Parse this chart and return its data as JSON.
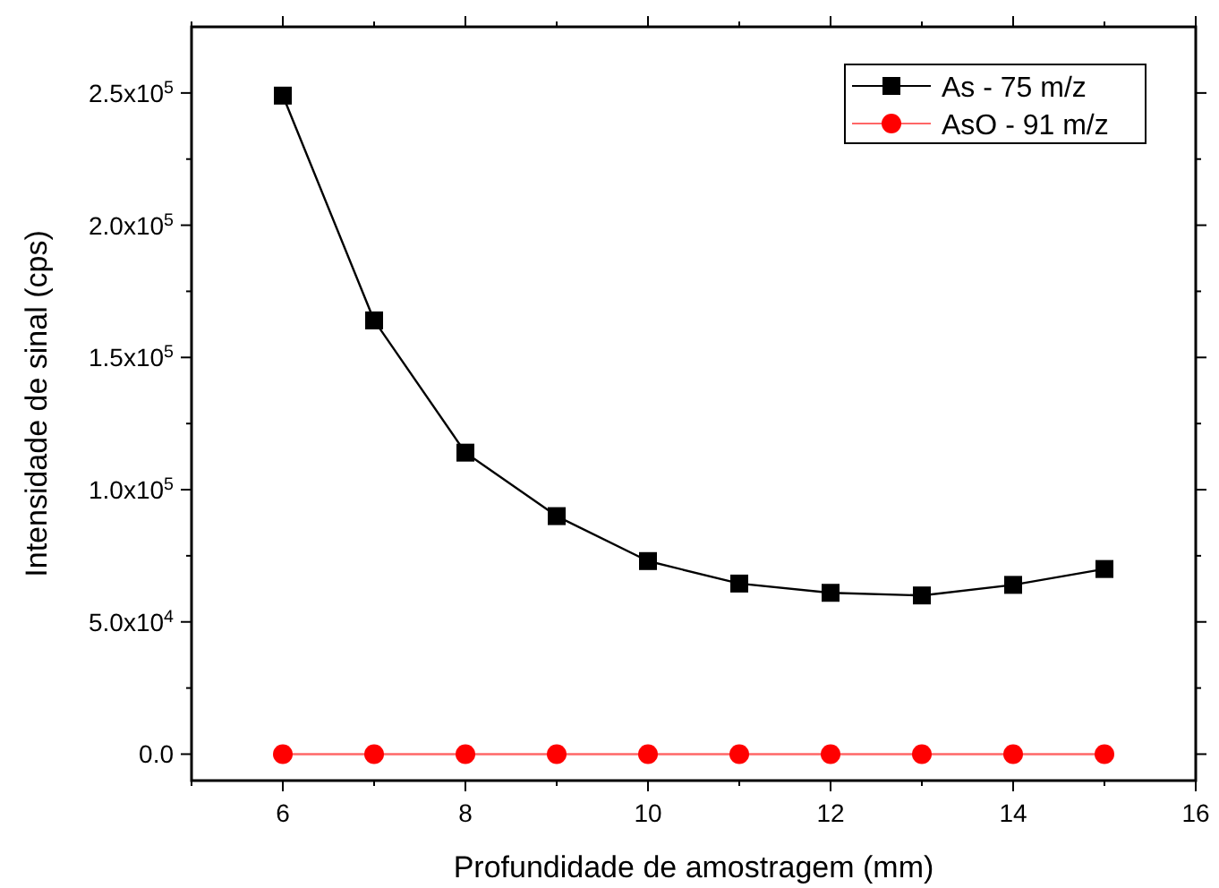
{
  "chart_data": {
    "type": "line",
    "xlabel": "Profundidade de amostragem (mm)",
    "ylabel": "Intensidade de sinal (cps)",
    "x": [
      6,
      7,
      8,
      9,
      10,
      11,
      12,
      13,
      14,
      15
    ],
    "series": [
      {
        "name": "As - 75 m/z",
        "color": "#000000",
        "marker": "square",
        "values": [
          249000,
          164000,
          114000,
          90000,
          73000,
          64500,
          61000,
          60000,
          64000,
          70000
        ]
      },
      {
        "name": "AsO - 91 m/z",
        "color": "#ff0000",
        "marker": "circle",
        "values": [
          0,
          0,
          0,
          0,
          0,
          0,
          0,
          0,
          0,
          0
        ]
      }
    ],
    "xlim": [
      5,
      16
    ],
    "xticks": [
      {
        "value": 5,
        "label": null
      },
      6,
      {
        "value": 7,
        "label": null
      },
      8,
      {
        "value": 9,
        "label": null
      },
      10,
      {
        "value": 11,
        "label": null
      },
      12,
      {
        "value": 13,
        "label": null
      },
      14,
      {
        "value": 15,
        "label": null
      },
      16
    ],
    "ylim": [
      -10000,
      275000
    ],
    "yticks": [
      {
        "value": 0,
        "label": "0.0"
      },
      {
        "value": 25000,
        "label": null
      },
      {
        "value": 50000,
        "label": "5.0x10$^{4}$"
      },
      {
        "value": 75000,
        "label": null
      },
      {
        "value": 100000,
        "label": "1.0x10$^{5}$"
      },
      {
        "value": 125000,
        "label": null
      },
      {
        "value": 150000,
        "label": "1.5x10$^{5}$"
      },
      {
        "value": 175000,
        "label": null
      },
      {
        "value": 200000,
        "label": "2.0x10$^{5}$"
      },
      {
        "value": 225000,
        "label": null
      },
      {
        "value": 250000,
        "label": "2.5x10$^{5}$"
      }
    ],
    "grid": false,
    "legend": "top right",
    "line_style": "solid"
  }
}
